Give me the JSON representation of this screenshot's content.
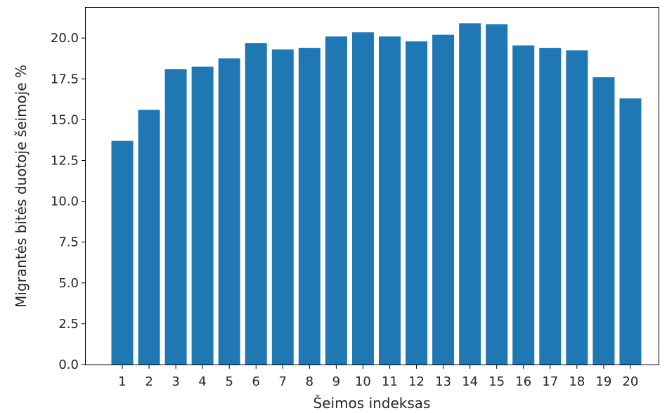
{
  "chart_data": {
    "type": "bar",
    "categories": [
      "1",
      "2",
      "3",
      "4",
      "5",
      "6",
      "7",
      "8",
      "9",
      "10",
      "11",
      "12",
      "13",
      "14",
      "15",
      "16",
      "17",
      "18",
      "19",
      "20"
    ],
    "values": [
      13.7,
      15.6,
      18.1,
      18.25,
      18.75,
      19.7,
      19.3,
      19.4,
      20.1,
      20.35,
      20.1,
      19.8,
      20.2,
      20.9,
      20.85,
      19.55,
      19.4,
      19.25,
      17.6,
      16.3
    ],
    "title": "",
    "xlabel": "Šeimos indeksas",
    "ylabel": "Migrantės bitės duotoje šeimoje %",
    "ylim": [
      0,
      21.9
    ],
    "yticks": [
      "0.0",
      "2.5",
      "5.0",
      "7.5",
      "10.0",
      "12.5",
      "15.0",
      "17.5",
      "20.0"
    ],
    "ytick_values": [
      0,
      2.5,
      5,
      7.5,
      10,
      12.5,
      15,
      17.5,
      20
    ],
    "grid": false,
    "bar_color": "#1f77b4"
  }
}
